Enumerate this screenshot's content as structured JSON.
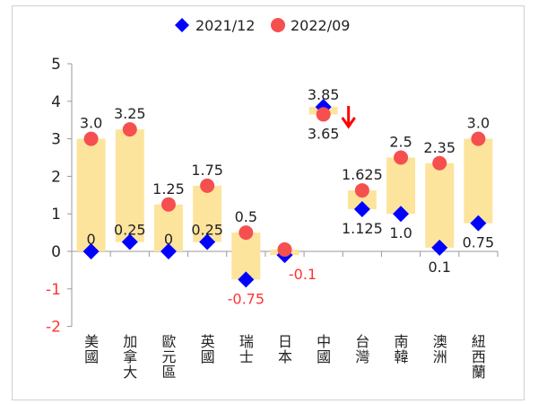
{
  "chart_data": {
    "type": "scatter",
    "title": "",
    "xlabel": "",
    "ylabel": "",
    "categories": [
      "美國",
      "加拿大",
      "歐元區",
      "英國",
      "瑞士",
      "日本",
      "中國",
      "台灣",
      "南韓",
      "澳洲",
      "紐西蘭"
    ],
    "series": [
      {
        "name": "2021/12",
        "marker": "diamond",
        "color": "#0000ff",
        "values": [
          0,
          0.25,
          0,
          0.25,
          -0.75,
          -0.1,
          3.85,
          1.125,
          1.0,
          0.1,
          0.75
        ],
        "labels": [
          "0",
          "0.25",
          "0",
          "0.25",
          "-0.75",
          "-0.1",
          "3.85",
          "1.125",
          "1.0",
          "0.1",
          "0.75"
        ]
      },
      {
        "name": "2022/09",
        "marker": "circle",
        "color": "#f5504f",
        "values": [
          3.0,
          3.25,
          1.25,
          1.75,
          0.5,
          0.05,
          3.65,
          1.625,
          2.5,
          2.35,
          3.0
        ],
        "labels": [
          "3.0",
          "3.25",
          "1.25",
          "1.75",
          "0.5",
          "",
          "3.65",
          "1.625",
          "2.5",
          "2.35",
          "3.0"
        ]
      }
    ],
    "range_bar_color": "#fde49c",
    "negative_label_color": "#ff3333",
    "annotation": "down-arrow",
    "annotation_color": "#ff0000",
    "ylim": [
      -2,
      5
    ],
    "yticks": [
      "-2",
      "-1",
      "0",
      "1",
      "2",
      "3",
      "4",
      "5"
    ],
    "grid": false,
    "legend": "top"
  }
}
